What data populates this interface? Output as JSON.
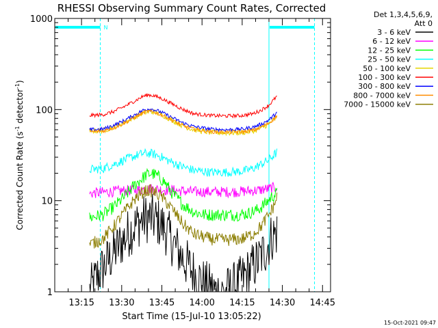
{
  "chart_data": {
    "type": "line",
    "title": "RHESSI Observing Summary Count Rates, Corrected",
    "xlabel": "Start Time (15-Jul-10 13:05:22)",
    "ylabel_main": "Corrected Count Rate (s",
    "ylabel_sup1": "-1",
    "ylabel_mid": " detector",
    "ylabel_sup2": "-1",
    "ylabel_end": ")",
    "yscale": "log",
    "ylim": [
      1,
      1000
    ],
    "xlim": [
      "13:05",
      "14:48"
    ],
    "yticks": [
      {
        "value": 1,
        "label": "1"
      },
      {
        "value": 10,
        "label": "10"
      },
      {
        "value": 100,
        "label": "100"
      },
      {
        "value": 1000,
        "label": "1000"
      }
    ],
    "xticks": [
      {
        "value": 10,
        "label": "13:15"
      },
      {
        "value": 25,
        "label": "13:30"
      },
      {
        "value": 40,
        "label": "13:45"
      },
      {
        "value": 55,
        "label": "14:00"
      },
      {
        "value": 70,
        "label": "14:15"
      },
      {
        "value": 85,
        "label": "14:30"
      },
      {
        "value": 100,
        "label": "14:45"
      }
    ],
    "legend_header": [
      "Det 1,3,4,5,6,9,",
      "Att 0"
    ],
    "legend_position": "right",
    "series": [
      {
        "name": "3 - 6 keV",
        "color": "#000000",
        "points": [
          [
            13,
            1
          ],
          [
            16,
            1.5
          ],
          [
            20,
            2.2
          ],
          [
            24,
            3.2
          ],
          [
            28,
            4.6
          ],
          [
            32,
            6.0
          ],
          [
            35,
            6.5
          ],
          [
            38,
            6.0
          ],
          [
            41,
            5.0
          ],
          [
            44,
            3.5
          ],
          [
            48,
            2.3
          ],
          [
            52,
            1.6
          ],
          [
            56,
            1.2
          ],
          [
            60,
            1.0
          ],
          [
            64,
            1.0
          ],
          [
            68,
            1.2
          ],
          [
            72,
            1.6
          ],
          [
            76,
            2.2
          ],
          [
            79,
            3.0
          ],
          [
            81,
            4.0
          ],
          [
            83,
            4.5
          ]
        ]
      },
      {
        "name": "6 - 12 keV",
        "color": "#ff00ff",
        "points": [
          [
            13,
            12
          ],
          [
            20,
            12.5
          ],
          [
            28,
            13
          ],
          [
            36,
            13.5
          ],
          [
            44,
            13
          ],
          [
            52,
            12.5
          ],
          [
            60,
            12.5
          ],
          [
            68,
            12.5
          ],
          [
            76,
            13
          ],
          [
            83,
            14
          ]
        ]
      },
      {
        "name": "12 - 25 keV",
        "color": "#00ff00",
        "points": [
          [
            13,
            6.5
          ],
          [
            18,
            7
          ],
          [
            22,
            8.5
          ],
          [
            26,
            11
          ],
          [
            30,
            15
          ],
          [
            34,
            19
          ],
          [
            36,
            20
          ],
          [
            38,
            19
          ],
          [
            41,
            16
          ],
          [
            44,
            12
          ],
          [
            48,
            9
          ],
          [
            52,
            7.5
          ],
          [
            56,
            7
          ],
          [
            62,
            7
          ],
          [
            68,
            7
          ],
          [
            72,
            7.2
          ],
          [
            76,
            8
          ],
          [
            79,
            9.5
          ],
          [
            81,
            11
          ],
          [
            83,
            12
          ]
        ]
      },
      {
        "name": "25 - 50 keV",
        "color": "#00ffff",
        "points": [
          [
            13,
            22
          ],
          [
            18,
            22.5
          ],
          [
            22,
            25
          ],
          [
            26,
            28
          ],
          [
            30,
            31
          ],
          [
            33,
            33
          ],
          [
            36,
            33
          ],
          [
            39,
            31
          ],
          [
            43,
            27
          ],
          [
            47,
            24
          ],
          [
            52,
            21.5
          ],
          [
            58,
            20.5
          ],
          [
            64,
            20.5
          ],
          [
            70,
            21
          ],
          [
            74,
            22.5
          ],
          [
            77,
            25
          ],
          [
            80,
            28
          ],
          [
            82,
            32
          ],
          [
            83,
            34
          ]
        ]
      },
      {
        "name": "50 - 100 keV",
        "color": "#e6d600",
        "points": [
          [
            13,
            58
          ],
          [
            18,
            59
          ],
          [
            22,
            64
          ],
          [
            26,
            72
          ],
          [
            30,
            83
          ],
          [
            33,
            92
          ],
          [
            35,
            95
          ],
          [
            37,
            94
          ],
          [
            40,
            88
          ],
          [
            44,
            76
          ],
          [
            48,
            66
          ],
          [
            52,
            60
          ],
          [
            58,
            56
          ],
          [
            64,
            55.5
          ],
          [
            70,
            56
          ],
          [
            74,
            58
          ],
          [
            77,
            62
          ],
          [
            80,
            70
          ],
          [
            82,
            78
          ],
          [
            83,
            82
          ]
        ]
      },
      {
        "name": "100 - 300 keV",
        "color": "#ff0000",
        "points": [
          [
            13,
            86
          ],
          [
            18,
            88
          ],
          [
            22,
            95
          ],
          [
            26,
            108
          ],
          [
            30,
            125
          ],
          [
            33,
            140
          ],
          [
            35,
            145
          ],
          [
            37,
            142
          ],
          [
            40,
            132
          ],
          [
            44,
            115
          ],
          [
            48,
            100
          ],
          [
            52,
            90
          ],
          [
            58,
            86
          ],
          [
            64,
            85
          ],
          [
            70,
            86
          ],
          [
            74,
            90
          ],
          [
            77,
            98
          ],
          [
            80,
            112
          ],
          [
            82,
            130
          ],
          [
            83,
            140
          ]
        ]
      },
      {
        "name": "300 - 800 keV",
        "color": "#0000ff",
        "points": [
          [
            13,
            60
          ],
          [
            18,
            61
          ],
          [
            22,
            67
          ],
          [
            26,
            76
          ],
          [
            30,
            88
          ],
          [
            33,
            98
          ],
          [
            35,
            102
          ],
          [
            37,
            100
          ],
          [
            40,
            93
          ],
          [
            44,
            81
          ],
          [
            48,
            71
          ],
          [
            52,
            65
          ],
          [
            58,
            61
          ],
          [
            64,
            60
          ],
          [
            70,
            61
          ],
          [
            74,
            64
          ],
          [
            77,
            69
          ],
          [
            80,
            77
          ],
          [
            82,
            87
          ],
          [
            83,
            93
          ]
        ]
      },
      {
        "name": "800 - 7000 keV",
        "color": "#ff8c00",
        "points": [
          [
            13,
            57
          ],
          [
            18,
            58
          ],
          [
            22,
            63
          ],
          [
            26,
            71
          ],
          [
            30,
            82
          ],
          [
            33,
            92
          ],
          [
            35,
            96
          ],
          [
            37,
            94
          ],
          [
            40,
            87
          ],
          [
            44,
            76
          ],
          [
            48,
            66
          ],
          [
            52,
            61
          ],
          [
            58,
            57
          ],
          [
            64,
            56.5
          ],
          [
            70,
            57
          ],
          [
            74,
            59
          ],
          [
            77,
            64
          ],
          [
            80,
            71
          ],
          [
            82,
            80
          ],
          [
            83,
            86
          ]
        ]
      },
      {
        "name": "7000 - 15000 keV",
        "color": "#8b7d00",
        "points": [
          [
            13,
            3.3
          ],
          [
            18,
            3.8
          ],
          [
            22,
            5.2
          ],
          [
            26,
            7.5
          ],
          [
            30,
            10.5
          ],
          [
            33,
            12.5
          ],
          [
            35,
            13
          ],
          [
            37,
            12.5
          ],
          [
            40,
            11
          ],
          [
            44,
            8
          ],
          [
            48,
            5.5
          ],
          [
            52,
            4.3
          ],
          [
            58,
            3.8
          ],
          [
            64,
            3.7
          ],
          [
            70,
            3.8
          ],
          [
            74,
            4.3
          ],
          [
            77,
            5.2
          ],
          [
            80,
            7
          ],
          [
            82,
            9
          ],
          [
            83,
            11
          ]
        ]
      }
    ],
    "annotations": [
      {
        "type": "vline",
        "x": 17,
        "style": "dashed",
        "color": "#00ffff"
      },
      {
        "type": "vline",
        "x": 80,
        "style": "solid",
        "color": "#00ffff"
      },
      {
        "type": "vline",
        "x": 97,
        "style": "dashed",
        "color": "#00ffff"
      },
      {
        "type": "hbar",
        "x_from": 0,
        "x_to": 17,
        "y": 800,
        "color": "#00ffff"
      },
      {
        "type": "hbar",
        "x_from": 80,
        "x_to": 97,
        "y": 800,
        "color": "#00ffff"
      },
      {
        "type": "text",
        "x": 17.5,
        "y": 800,
        "text": "N",
        "color": "#00ffff"
      }
    ]
  },
  "footer": {
    "timestamp": "15-Oct-2021 09:47"
  }
}
